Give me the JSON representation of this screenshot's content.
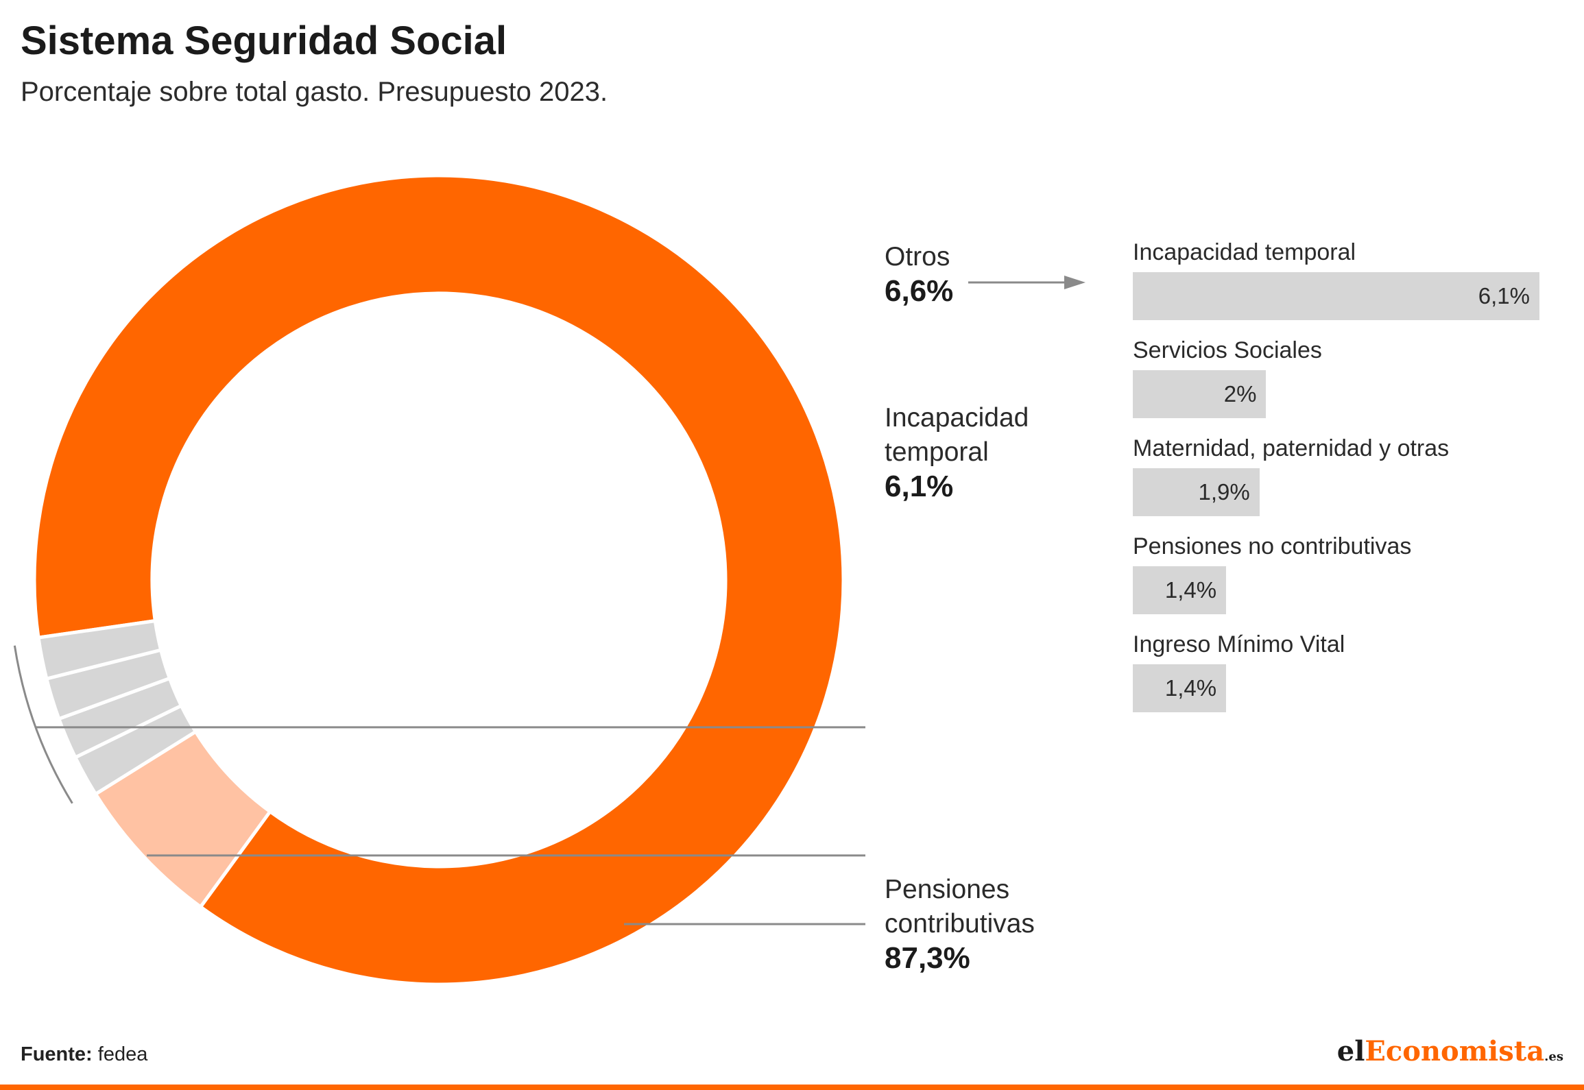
{
  "header": {
    "title": "Sistema Seguridad Social",
    "subtitle": "Porcentaje sobre total gasto. Presupuesto 2023."
  },
  "chart_data": [
    {
      "type": "pie",
      "variant": "donut",
      "slices": [
        {
          "name": "Pensiones contributivas",
          "value": 87.3,
          "label": "87,3%",
          "color": "#ff6600"
        },
        {
          "name": "Incapacidad temporal",
          "value": 6.1,
          "label": "6,1%",
          "color": "#ffc2a3"
        },
        {
          "name": "Otros",
          "value": 6.6,
          "label": "6,6%",
          "color": "#d6d6d6",
          "subdivisions": 4
        }
      ],
      "labels": {
        "otros": {
          "name": "Otros",
          "value": "6,6%"
        },
        "incapacidad": {
          "name_line1": "Incapacidad",
          "name_line2": "temporal",
          "value": "6,1%"
        },
        "pensiones": {
          "name_line1": "Pensiones",
          "name_line2": "contributivas",
          "value": "87,3%"
        }
      }
    },
    {
      "type": "bar",
      "orientation": "horizontal",
      "color": "#d6d6d6",
      "categories": [
        "Incapacidad temporal",
        "Servicios Sociales",
        "Maternidad, paternidad y otras",
        "Pensiones no contributivas",
        "Ingreso Mínimo Vital"
      ],
      "values": [
        6.1,
        2,
        1.9,
        1.4,
        1.4
      ],
      "value_labels": [
        "6,1%",
        "2%",
        "1,9%",
        "1,4%",
        "1,4%"
      ]
    }
  ],
  "footer": {
    "source_label": "Fuente:",
    "source_value": "fedea",
    "logo_part1": "el",
    "logo_part2": "Economista",
    "logo_part3": ".es"
  }
}
